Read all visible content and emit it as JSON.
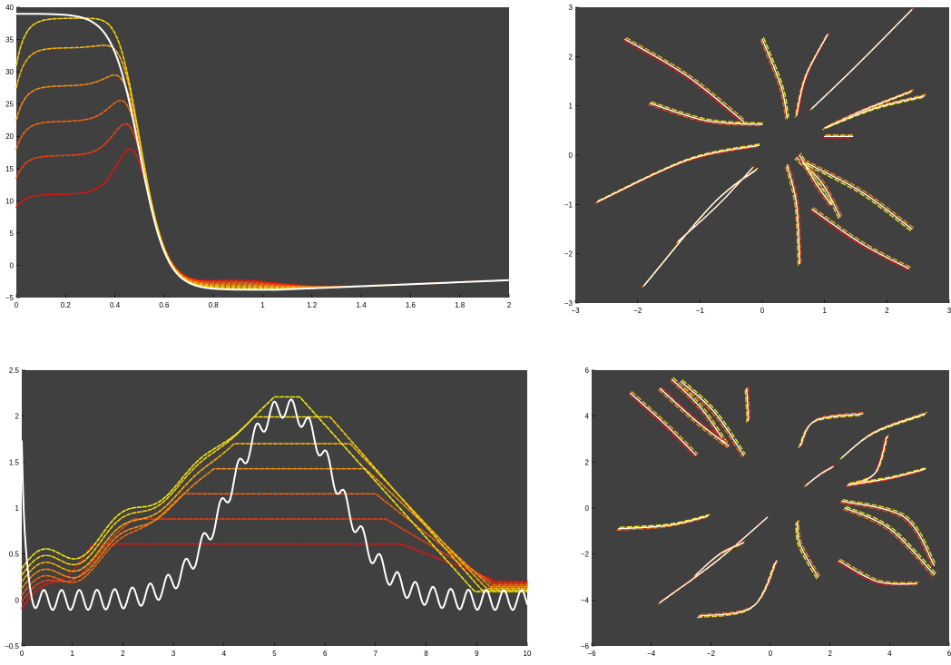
{
  "colors": {
    "axes_background": "#404040",
    "figure_background": "#ffffff",
    "exact_curve": "#ffffff",
    "iterates": [
      "#e8120c",
      "#f03e0c",
      "#f2630c",
      "#f58a0c",
      "#f7b10c",
      "#f6d20c",
      "#f2ea10"
    ]
  },
  "chart_data": [
    {
      "type": "line",
      "xlim": [
        0,
        2
      ],
      "ylim": [
        -5,
        40
      ],
      "xticks": [
        "0",
        "0.2",
        "0.4",
        "0.6",
        "0.8",
        "1",
        "1.2",
        "1.4",
        "1.6",
        "1.8",
        "2"
      ],
      "yticks": [
        "−5",
        "0",
        "5",
        "10",
        "15",
        "20",
        "25",
        "30",
        "35",
        "40"
      ],
      "grid": false,
      "legend": "none",
      "exact": {
        "plateau": 39,
        "tail_min": -3.8,
        "tail_end": -2.3
      },
      "iterate_plateaus": [
        11,
        17,
        22.3,
        27.8,
        33.7,
        38.3
      ],
      "iterate_start_values": [
        9,
        13.5,
        18,
        22.5,
        27.5,
        31
      ]
    },
    {
      "type": "line",
      "xlim": [
        -3,
        3
      ],
      "ylim": [
        -3,
        3
      ],
      "xticks": [
        "−3",
        "−2",
        "−1",
        "0",
        "1",
        "2",
        "3"
      ],
      "yticks": [
        "−3",
        "−2",
        "−1",
        "0",
        "1",
        "2",
        "3"
      ],
      "grid": false,
      "legend": "none",
      "trajectories": [
        [
          [
            -2.2,
            2.35
          ],
          [
            -1.2,
            1.6
          ],
          [
            -0.3,
            0.68
          ]
        ],
        [
          [
            -1.8,
            1.05
          ],
          [
            -0.9,
            0.7
          ],
          [
            0.0,
            0.62
          ]
        ],
        [
          [
            0.0,
            2.35
          ],
          [
            0.3,
            1.4
          ],
          [
            0.4,
            0.75
          ]
        ],
        [
          [
            1.05,
            2.45
          ],
          [
            0.7,
            1.6
          ],
          [
            0.55,
            0.8
          ]
        ],
        [
          [
            2.4,
            2.95
          ],
          [
            1.5,
            1.8
          ],
          [
            0.8,
            0.95
          ]
        ],
        [
          [
            2.4,
            1.3
          ],
          [
            1.6,
            0.9
          ],
          [
            1.0,
            0.55
          ]
        ],
        [
          [
            2.6,
            1.2
          ],
          [
            1.8,
            0.95
          ],
          [
            1.05,
            0.58
          ]
        ],
        [
          [
            1.0,
            0.38
          ],
          [
            1.4,
            0.38
          ],
          [
            1.45,
            0.38
          ]
        ],
        [
          [
            -2.65,
            -0.95
          ],
          [
            -1.2,
            -0.1
          ],
          [
            -0.05,
            0.2
          ]
        ],
        [
          [
            -1.9,
            -2.65
          ],
          [
            -0.8,
            -1.0
          ],
          [
            -0.1,
            -0.3
          ]
        ],
        [
          [
            -1.35,
            -1.75
          ],
          [
            -0.7,
            -1.0
          ],
          [
            -0.15,
            -0.25
          ]
        ],
        [
          [
            0.6,
            -2.2
          ],
          [
            0.55,
            -1.0
          ],
          [
            0.4,
            -0.2
          ]
        ],
        [
          [
            1.25,
            -1.25
          ],
          [
            0.95,
            -0.55
          ],
          [
            0.55,
            -0.05
          ]
        ],
        [
          [
            2.4,
            -1.5
          ],
          [
            1.6,
            -0.75
          ],
          [
            0.7,
            -0.15
          ]
        ],
        [
          [
            2.35,
            -2.3
          ],
          [
            1.6,
            -1.8
          ],
          [
            0.8,
            -1.1
          ]
        ],
        [
          [
            1.1,
            -1.0
          ],
          [
            0.85,
            -0.55
          ],
          [
            0.6,
            0.0
          ]
        ]
      ]
    },
    {
      "type": "line",
      "xlim": [
        0,
        10
      ],
      "ylim": [
        -0.6,
        2.7
      ],
      "xticks": [
        "0",
        "1",
        "2",
        "3",
        "4",
        "5",
        "6",
        "7",
        "8",
        "9",
        "10"
      ],
      "yticks": [
        "−0.5",
        "0",
        "0.5",
        "1",
        "1.5",
        "2",
        "2.5"
      ],
      "grid": false,
      "legend": "none",
      "exact": {
        "start": 1.8,
        "peak": 2.35,
        "peak_x": 5.2,
        "ripple_amp": 0.12,
        "ripple_period": 0.35
      },
      "iterate_plateaus": [
        0.62,
        0.92,
        1.22,
        1.52,
        1.82,
        2.14,
        2.38
      ],
      "iterate_plateau_ranges": [
        [
          1.4,
          7.5
        ],
        [
          2.2,
          7.2
        ],
        [
          3.2,
          7.0
        ],
        [
          3.8,
          6.8
        ],
        [
          4.2,
          6.5
        ],
        [
          4.6,
          6.1
        ],
        [
          5.0,
          5.5
        ]
      ]
    },
    {
      "type": "line",
      "xlim": [
        -6,
        6
      ],
      "ylim": [
        -6,
        6
      ],
      "xticks": [
        "−6",
        "−4",
        "−2",
        "0",
        "2",
        "4",
        "6"
      ],
      "yticks": [
        "−6",
        "−4",
        "−2",
        "0",
        "2",
        "4",
        "6"
      ],
      "grid": false,
      "legend": "none",
      "trajectories": [
        [
          [
            -4.7,
            5.0
          ],
          [
            -3.5,
            3.6
          ],
          [
            -2.5,
            2.3
          ]
        ],
        [
          [
            -3.3,
            5.6
          ],
          [
            -2.3,
            4.3
          ],
          [
            -1.5,
            2.8
          ]
        ],
        [
          [
            -3.0,
            5.5
          ],
          [
            -1.9,
            4.2
          ],
          [
            -0.9,
            2.3
          ]
        ],
        [
          [
            -3.7,
            5.2
          ],
          [
            -2.5,
            3.8
          ],
          [
            -1.4,
            2.7
          ]
        ],
        [
          [
            -0.8,
            5.2
          ],
          [
            -0.75,
            4.2
          ],
          [
            -0.75,
            3.8
          ]
        ],
        [
          [
            1.0,
            2.7
          ],
          [
            1.5,
            3.8
          ],
          [
            3.1,
            4.1
          ]
        ],
        [
          [
            2.4,
            2.2
          ],
          [
            3.5,
            3.3
          ],
          [
            5.2,
            4.1
          ]
        ],
        [
          [
            2.6,
            1.0
          ],
          [
            3.5,
            1.5
          ],
          [
            3.9,
            3.1
          ]
        ],
        [
          [
            2.6,
            1.0
          ],
          [
            4.0,
            1.3
          ],
          [
            5.2,
            1.7
          ]
        ],
        [
          [
            -5.1,
            -0.9
          ],
          [
            -3.4,
            -0.75
          ],
          [
            -2.1,
            -0.35
          ]
        ],
        [
          [
            -3.7,
            -4.1
          ],
          [
            -1.8,
            -2.3
          ],
          [
            -0.1,
            -0.4
          ]
        ],
        [
          [
            -2.5,
            -2.9
          ],
          [
            -1.7,
            -2.0
          ],
          [
            -0.9,
            -1.5
          ]
        ],
        [
          [
            -2.4,
            -4.7
          ],
          [
            -0.6,
            -4.3
          ],
          [
            0.2,
            -2.3
          ]
        ],
        [
          [
            1.6,
            -3.0
          ],
          [
            1.0,
            -1.6
          ],
          [
            0.9,
            -0.6
          ]
        ],
        [
          [
            2.3,
            -2.3
          ],
          [
            3.6,
            -3.2
          ],
          [
            4.9,
            -3.3
          ]
        ],
        [
          [
            2.4,
            0.3
          ],
          [
            4.5,
            -0.4
          ],
          [
            5.5,
            -2.5
          ]
        ],
        [
          [
            2.5,
            0.0
          ],
          [
            4.0,
            -0.9
          ],
          [
            5.5,
            -2.9
          ]
        ],
        [
          [
            1.2,
            1.0
          ],
          [
            1.7,
            1.5
          ],
          [
            2.1,
            1.8
          ]
        ]
      ]
    }
  ]
}
